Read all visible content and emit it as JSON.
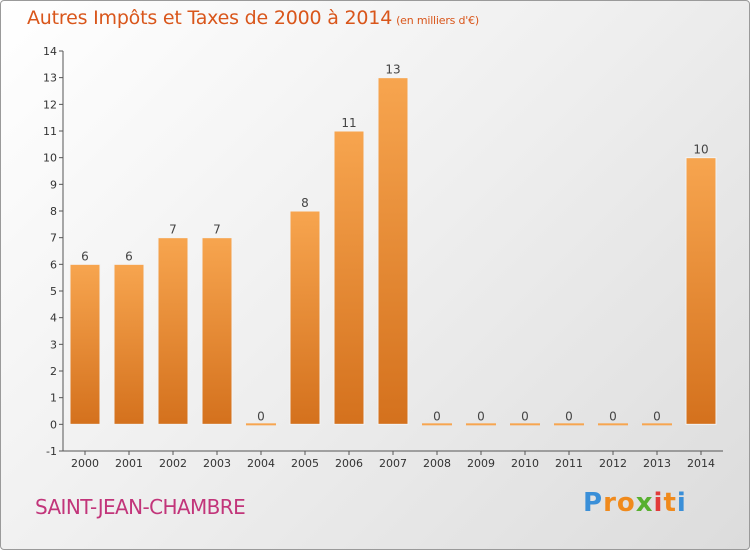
{
  "title": {
    "main": "Autres Impôts et Taxes de 2000 à 2014",
    "unit": "(en milliers d'€)"
  },
  "commune": "SAINT-JEAN-CHAMBRE",
  "logo": {
    "letters": [
      "P",
      "r",
      "o",
      "x",
      "i",
      "t",
      "i"
    ],
    "colors": [
      "#3a8fd8",
      "#f08a1c",
      "#f08a1c",
      "#58b030",
      "#e23a3a",
      "#f08a1c",
      "#3a8fd8"
    ]
  },
  "colors": {
    "bar_top": "#f7a54f",
    "bar_bottom": "#d4711d",
    "title": "#d9561b",
    "commune": "#c2357a"
  },
  "chart_data": {
    "type": "bar",
    "categories": [
      "2000",
      "2001",
      "2002",
      "2003",
      "2004",
      "2005",
      "2006",
      "2007",
      "2008",
      "2009",
      "2010",
      "2011",
      "2012",
      "2013",
      "2014"
    ],
    "values": [
      6,
      6,
      7,
      7,
      0,
      8,
      11,
      13,
      0,
      0,
      0,
      0,
      0,
      0,
      10
    ],
    "value_labels": [
      "6",
      "6",
      "7",
      "7",
      "0",
      "8",
      "11",
      "13",
      "0",
      "0",
      "0",
      "0",
      "0",
      "0",
      "10"
    ],
    "title": "Autres Impôts et Taxes de 2000 à 2014",
    "ylim": [
      -1,
      14
    ],
    "yticks": [
      -1,
      0,
      1,
      2,
      3,
      4,
      5,
      6,
      7,
      8,
      9,
      10,
      11,
      12,
      13,
      14
    ],
    "ytick_labels": [
      "-1",
      "0",
      "1",
      "2",
      "3",
      "4",
      "5",
      "6",
      "7",
      "8",
      "9",
      "10",
      "11",
      "12",
      "13",
      "14"
    ],
    "grid": false,
    "legend": "none"
  }
}
